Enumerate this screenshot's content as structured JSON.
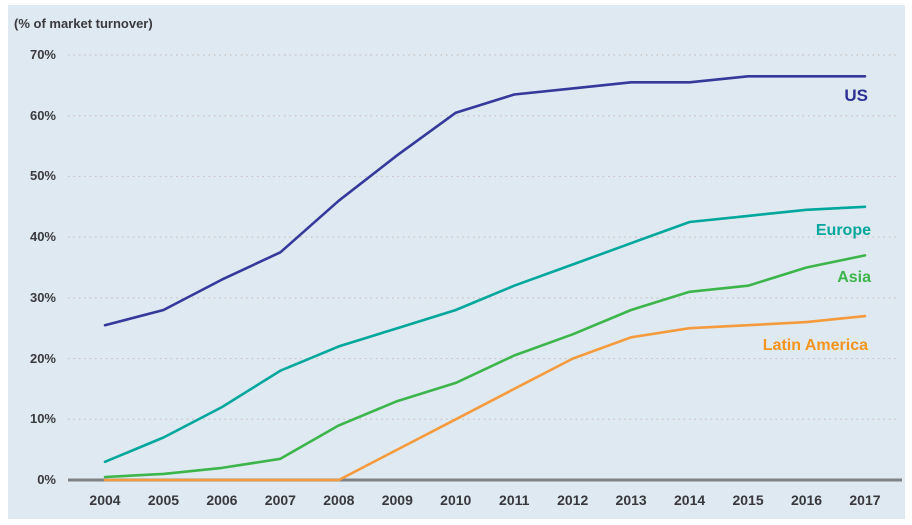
{
  "title": "(% of market turnover)",
  "colors": {
    "panel_background": "#dfe9f1",
    "page_background": "#ffffff",
    "axis": "#7f8285",
    "gridline": "#cbc2c8",
    "tick_text": "#3a3a3e",
    "us": "#34399b",
    "us_label": "#2d3193",
    "europe": "#00a79d",
    "asia": "#3cb54a",
    "latin_america_line": "#f59b3d",
    "latin_america_label": "#f7941d"
  },
  "chart_data": {
    "type": "line",
    "title": "(% of market turnover)",
    "xlabel": "",
    "ylabel": "% of market turnover",
    "x": [
      "2004",
      "2005",
      "2006",
      "2007",
      "2008",
      "2009",
      "2010",
      "2011",
      "2012",
      "2013",
      "2014",
      "2015",
      "2016",
      "2017"
    ],
    "yticks": [
      "0%",
      "10%",
      "20%",
      "30%",
      "40%",
      "50%",
      "60%",
      "70%"
    ],
    "ylim": [
      0,
      70
    ],
    "grid": "horizontal dotted gridlines at every 10%, solid gray baseline at 0%",
    "legend_position": "inline labels at right end of each line",
    "series": [
      {
        "name": "US",
        "values": [
          25.5,
          28,
          33,
          37.5,
          46,
          53.5,
          60.5,
          63.5,
          64.5,
          65.5,
          65.5,
          66.5,
          66.5,
          66.5
        ]
      },
      {
        "name": "Europe",
        "values": [
          3,
          7,
          12,
          18,
          22,
          25,
          28,
          32,
          35.5,
          39,
          42.5,
          43.5,
          44.5,
          45
        ]
      },
      {
        "name": "Asia",
        "values": [
          0.5,
          1,
          2,
          3.5,
          9,
          13,
          16,
          20.5,
          24,
          28,
          31,
          32,
          35,
          37
        ]
      },
      {
        "name": "Latin America",
        "values": [
          0,
          0,
          0,
          0,
          0,
          5,
          10,
          15,
          20,
          23.5,
          25,
          25.5,
          26,
          27
        ]
      }
    ]
  }
}
